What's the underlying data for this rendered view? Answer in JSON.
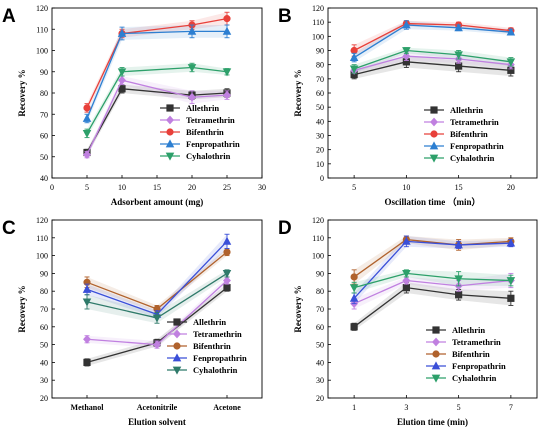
{
  "panels": [
    {
      "label": "A",
      "xlabel": "Adsorbent amount (mg)",
      "ylabel": "Recovery %",
      "ylim": [
        40,
        120
      ],
      "yticks": [
        40,
        50,
        60,
        70,
        80,
        90,
        100,
        110,
        120
      ],
      "xlim": [
        0,
        30
      ],
      "xticks": [
        "0",
        "5",
        "10",
        "15",
        "20",
        "25",
        "30"
      ],
      "x": [
        5,
        10,
        20,
        25
      ]
    },
    {
      "label": "B",
      "xlabel": "Oscillation time （min）",
      "ylabel": "Recovery %",
      "ylim": [
        0,
        120
      ],
      "yticks": [
        0,
        10,
        20,
        30,
        40,
        50,
        60,
        70,
        80,
        90,
        100,
        110,
        120
      ],
      "xlim": [
        2.5,
        22.5
      ],
      "xticks": [
        "5",
        "10",
        "15",
        "20"
      ],
      "x": [
        5,
        10,
        15,
        20
      ]
    },
    {
      "label": "C",
      "xlabel": "Elution solvent",
      "ylabel": "Recovery %",
      "ylim": [
        20,
        120
      ],
      "yticks": [
        20,
        30,
        40,
        50,
        60,
        70,
        80,
        90,
        100,
        110,
        120
      ],
      "categories": [
        "Methanol",
        "Acetonitrile",
        "Acetone"
      ]
    },
    {
      "label": "D",
      "xlabel": "Elution time (min)",
      "ylabel": "Recovery %",
      "ylim": [
        20,
        120
      ],
      "yticks": [
        20,
        30,
        40,
        50,
        60,
        70,
        80,
        90,
        100,
        110,
        120
      ],
      "xlim": [
        0,
        8
      ],
      "xticks": [
        "1",
        "3",
        "5",
        "7"
      ],
      "x": [
        1,
        3,
        5,
        7
      ]
    }
  ],
  "legend": {
    "entries": [
      "Allethrin",
      "Tetramethrin",
      "Bifenthrin",
      "Fenpropathrin",
      "Cyhalothrin"
    ]
  },
  "chart_data": [
    {
      "type": "line",
      "title": "A",
      "xlabel": "Adsorbent amount (mg)",
      "ylabel": "Recovery %",
      "xlim": [
        0,
        30
      ],
      "ylim": [
        40,
        120
      ],
      "x": [
        5,
        10,
        20,
        25
      ],
      "series": [
        {
          "name": "Allethrin",
          "color": "#333333",
          "marker": "square",
          "values": [
            52,
            82,
            79,
            80
          ],
          "errors": [
            1.5,
            2,
            2,
            2
          ]
        },
        {
          "name": "Tetramethrin",
          "color": "#c080e0",
          "marker": "diamond",
          "values": [
            51,
            86,
            78,
            79
          ],
          "errors": [
            1.5,
            2,
            3,
            2
          ]
        },
        {
          "name": "Bifenthrin",
          "color": "#e8403a",
          "marker": "circle",
          "values": [
            73,
            108,
            112,
            115
          ],
          "errors": [
            2,
            2,
            2,
            3
          ]
        },
        {
          "name": "Fenpropathrin",
          "color": "#2d7fd1",
          "marker": "triangle-up",
          "values": [
            68,
            108,
            109,
            109
          ],
          "errors": [
            2,
            3,
            3,
            3
          ]
        },
        {
          "name": "Cyhalothrin",
          "color": "#2da06a",
          "marker": "triangle-down",
          "values": [
            61,
            90,
            92,
            90
          ],
          "errors": [
            2,
            2,
            2,
            1.5
          ]
        }
      ]
    },
    {
      "type": "line",
      "title": "B",
      "xlabel": "Oscillation time （min）",
      "ylabel": "Recovery %",
      "xlim": [
        2.5,
        22.5
      ],
      "ylim": [
        0,
        120
      ],
      "x": [
        5,
        10,
        15,
        20
      ],
      "series": [
        {
          "name": "Allethrin",
          "color": "#333333",
          "marker": "square",
          "values": [
            73,
            82,
            79,
            76
          ],
          "errors": [
            3,
            4,
            4,
            4
          ]
        },
        {
          "name": "Tetramethrin",
          "color": "#c080e0",
          "marker": "diamond",
          "values": [
            76,
            86,
            84,
            80
          ],
          "errors": [
            2,
            3,
            3,
            3
          ]
        },
        {
          "name": "Bifenthrin",
          "color": "#e8403a",
          "marker": "circle",
          "values": [
            90,
            109,
            108,
            104
          ],
          "errors": [
            4,
            2,
            2,
            2
          ]
        },
        {
          "name": "Fenpropathrin",
          "color": "#2d7fd1",
          "marker": "triangle-up",
          "values": [
            85,
            108,
            106,
            103
          ],
          "errors": [
            3,
            3,
            2,
            2
          ]
        },
        {
          "name": "Cyhalothrin",
          "color": "#2da06a",
          "marker": "triangle-down",
          "values": [
            77,
            90,
            87,
            82
          ],
          "errors": [
            3,
            2,
            3,
            3
          ]
        }
      ]
    },
    {
      "type": "line",
      "title": "C",
      "xlabel": "Elution solvent",
      "ylabel": "Recovery %",
      "ylim": [
        20,
        120
      ],
      "categories": [
        "Methanol",
        "Acetonitrile",
        "Acetone"
      ],
      "series": [
        {
          "name": "Allethrin",
          "color": "#333333",
          "marker": "square",
          "values": [
            40,
            51,
            82
          ],
          "errors": [
            2,
            2,
            2
          ]
        },
        {
          "name": "Tetramethrin",
          "color": "#c080e0",
          "marker": "diamond",
          "values": [
            53,
            50,
            86
          ],
          "errors": [
            2,
            2,
            2
          ]
        },
        {
          "name": "Bifenthrin",
          "color": "#b0622d",
          "marker": "circle",
          "values": [
            85,
            70,
            102
          ],
          "errors": [
            3,
            2,
            2
          ]
        },
        {
          "name": "Fenpropathrin",
          "color": "#3a4fd8",
          "marker": "triangle-up",
          "values": [
            81,
            67,
            108
          ],
          "errors": [
            3,
            2,
            4
          ]
        },
        {
          "name": "Cyhalothrin",
          "color": "#2f7a6a",
          "marker": "triangle-down",
          "values": [
            74,
            65,
            90
          ],
          "errors": [
            4,
            3,
            2
          ]
        }
      ]
    },
    {
      "type": "line",
      "title": "D",
      "xlabel": "Elution time (min)",
      "ylabel": "Recovery %",
      "xlim": [
        0,
        8
      ],
      "ylim": [
        20,
        120
      ],
      "x": [
        1,
        3,
        5,
        7
      ],
      "series": [
        {
          "name": "Allethrin",
          "color": "#333333",
          "marker": "square",
          "values": [
            60,
            82,
            78,
            76
          ],
          "errors": [
            2,
            3,
            3,
            4
          ]
        },
        {
          "name": "Tetramethrin",
          "color": "#c080e0",
          "marker": "diamond",
          "values": [
            73,
            86,
            83,
            86
          ],
          "errors": [
            3,
            2,
            3,
            4
          ]
        },
        {
          "name": "Bifenthrin",
          "color": "#b0622d",
          "marker": "circle",
          "values": [
            88,
            109,
            106,
            108
          ],
          "errors": [
            4,
            2,
            3,
            2
          ]
        },
        {
          "name": "Fenpropathrin",
          "color": "#3a4fd8",
          "marker": "triangle-up",
          "values": [
            76,
            108,
            106,
            107
          ],
          "errors": [
            3,
            3,
            2,
            2
          ]
        },
        {
          "name": "Cyhalothrin",
          "color": "#2da06a",
          "marker": "triangle-down",
          "values": [
            82,
            90,
            87,
            86
          ],
          "errors": [
            3,
            2,
            4,
            3
          ]
        }
      ]
    }
  ]
}
